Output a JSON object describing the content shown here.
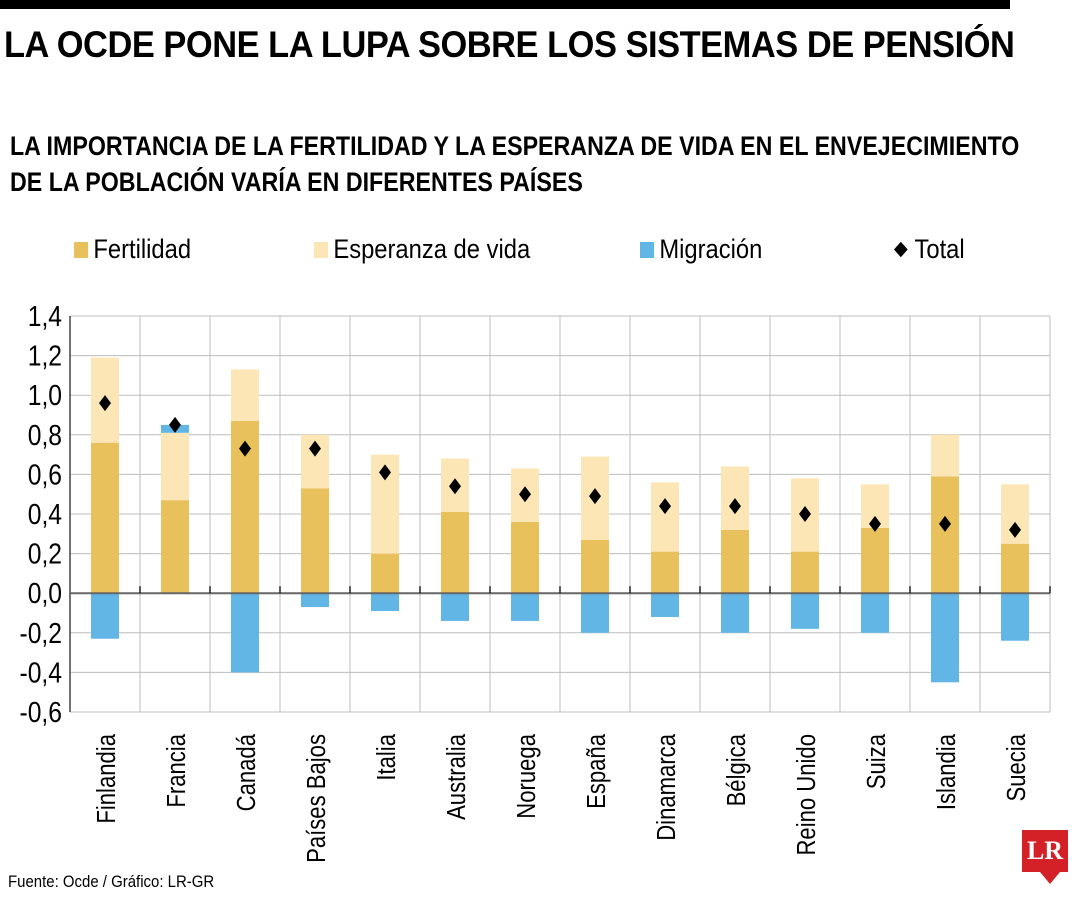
{
  "title": "LA OCDE PONE LA LUPA SOBRE LOS SISTEMAS DE PENSIÓN",
  "source": "Fuente: Ocde / Gráfico: LR-GR",
  "logo_text": "LR",
  "chart_data": {
    "type": "bar",
    "stacked": true,
    "title": "LA IMPORTANCIA DE LA FERTILIDAD Y LA ESPERANZA DE VIDA EN EL ENVEJECIMIENTO DE LA POBLACIÓN VARÍA EN DIFERENTES PAÍSES",
    "title_lines": [
      "LA IMPORTANCIA DE LA FERTILIDAD Y LA ESPERANZA DE VIDA EN EL ENVEJECIMIENTO",
      "DE LA POBLACIÓN VARÍA EN DIFERENTES PAÍSES"
    ],
    "categories": [
      "Finlandia",
      "Francia",
      "Canadá",
      "Países Bajos",
      "Italia",
      "Australia",
      "Noruega",
      "España",
      "Dinamarca",
      "Bélgica",
      "Reino Unido",
      "Suiza",
      "Islandia",
      "Suecia"
    ],
    "series": [
      {
        "name": "Fertilidad",
        "color": "#e9c15c",
        "values": [
          0.76,
          0.47,
          0.87,
          0.53,
          0.2,
          0.41,
          0.36,
          0.27,
          0.21,
          0.32,
          0.21,
          0.33,
          0.59,
          0.25
        ]
      },
      {
        "name": "Esperanza de vida",
        "color": "#fde6b6",
        "values": [
          0.43,
          0.34,
          0.26,
          0.27,
          0.5,
          0.27,
          0.27,
          0.42,
          0.35,
          0.32,
          0.37,
          0.22,
          0.21,
          0.3
        ]
      },
      {
        "name": "Migración",
        "color": "#62b6e6",
        "values": [
          -0.23,
          0.04,
          -0.4,
          -0.07,
          -0.09,
          -0.14,
          -0.14,
          -0.2,
          -0.12,
          -0.2,
          -0.18,
          -0.2,
          -0.45,
          -0.24
        ]
      },
      {
        "name": "Total",
        "marker": "diamond",
        "color": "#000000",
        "values": [
          0.96,
          0.85,
          0.73,
          0.73,
          0.61,
          0.54,
          0.5,
          0.49,
          0.44,
          0.44,
          0.4,
          0.35,
          0.35,
          0.32
        ]
      }
    ],
    "ylim": [
      -0.6,
      1.4
    ],
    "yticks": [
      "-0,6",
      "-0,4",
      "-0,2",
      "0,0",
      "0,2",
      "0,4",
      "0,6",
      "0,8",
      "1,0",
      "1,2",
      "1,4"
    ],
    "grid": true,
    "legend": "top"
  }
}
